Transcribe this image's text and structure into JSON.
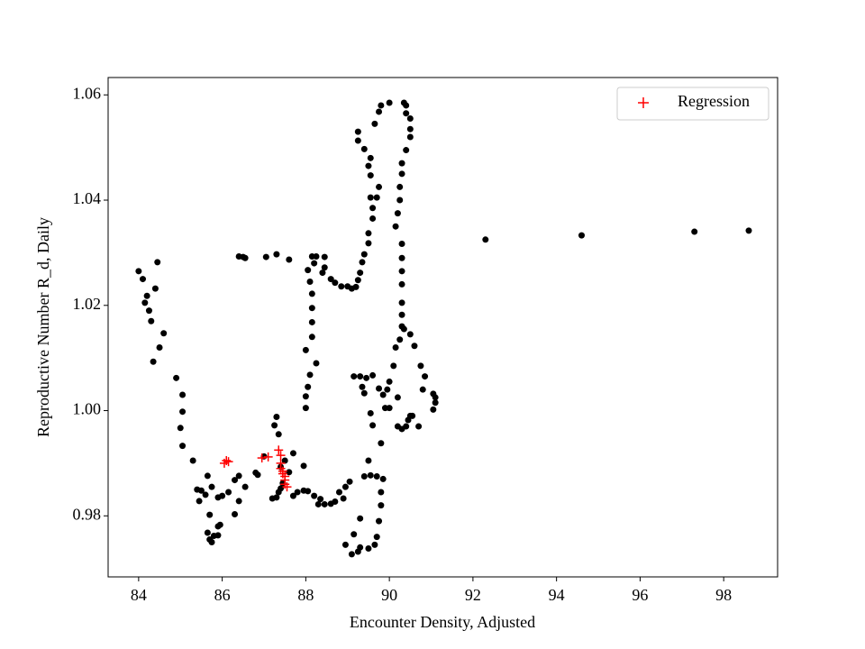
{
  "chart_data": {
    "type": "scatter",
    "xlabel": "Encounter Density, Adjusted",
    "ylabel": "Reproductive Number R_d, Daily",
    "xlim": [
      83.27,
      99.29
    ],
    "ylim": [
      0.9684,
      1.0633
    ],
    "xticks": [
      84,
      86,
      88,
      90,
      92,
      94,
      96,
      98
    ],
    "yticks": [
      0.98,
      {
        "value": 1,
        "label": "1.00"
      },
      1.02,
      1.04,
      1.06
    ],
    "legend": "upper right",
    "series": [
      {
        "color": "#000000",
        "marker": "dot",
        "x": [
          84.0,
          84.1,
          84.15,
          84.2,
          84.25,
          84.3,
          84.4,
          84.45,
          84.5,
          84.6,
          84.35,
          84.9,
          85.05,
          85.05,
          85.0,
          85.05,
          85.3,
          85.4,
          85.5,
          85.45,
          85.6,
          85.65,
          85.75,
          85.7,
          85.65,
          85.7,
          85.75,
          85.8,
          85.9,
          85.9,
          85.95,
          85.9,
          86.0,
          86.15,
          86.3,
          86.4,
          86.3,
          86.4,
          86.55,
          86.8,
          86.85,
          87.0,
          86.4,
          86.5,
          86.55,
          87.05,
          87.3,
          87.6,
          87.25,
          87.3,
          87.35,
          87.2,
          87.3,
          87.35,
          87.4,
          87.45,
          87.4,
          87.5,
          87.6,
          87.7,
          87.7,
          87.8,
          87.95,
          88.05,
          88.2,
          88.3,
          88.35,
          88.45,
          88.6,
          88.7,
          88.8,
          88.95,
          89.05,
          88.9,
          87.95,
          88.0,
          88.0,
          88.05,
          88.1,
          88.25,
          88.0,
          88.15,
          88.15,
          88.15,
          88.15,
          88.1,
          88.05,
          88.15,
          88.25,
          88.2,
          88.4,
          88.45,
          88.45,
          88.6,
          88.7,
          88.85,
          89.0,
          89.1,
          89.2,
          89.25,
          89.3,
          89.35,
          89.4,
          89.5,
          89.5,
          89.6,
          89.6,
          89.55,
          89.75,
          89.7,
          89.55,
          89.5,
          89.55,
          89.4,
          89.25,
          89.25,
          89.65,
          89.75,
          89.8,
          90.0,
          90.35,
          90.4,
          90.5,
          90.4,
          90.5,
          90.5,
          90.4,
          90.3,
          90.3,
          90.25,
          90.25,
          90.2,
          90.15,
          90.3,
          90.3,
          90.3,
          90.3,
          90.3,
          90.3,
          90.3,
          90.35,
          90.25,
          90.15,
          90.1,
          90.0,
          89.95,
          89.9,
          90.0,
          90.2,
          89.85,
          89.75,
          89.6,
          89.45,
          89.35,
          89.3,
          89.15,
          89.4,
          89.55,
          89.6,
          89.5,
          89.4,
          89.55,
          89.7,
          89.85,
          89.8,
          89.8,
          89.75,
          89.7,
          89.65,
          89.3,
          89.25,
          89.1,
          89.15,
          89.3,
          88.95,
          89.5,
          89.8,
          90.2,
          90.3,
          90.4,
          90.45,
          90.5,
          90.55,
          90.7,
          90.5,
          90.6,
          90.75,
          90.85,
          91.05,
          91.1,
          91.05,
          91.1,
          90.8,
          92.3,
          94.6,
          97.3,
          98.6
        ],
        "y": [
          1.0265,
          1.025,
          1.0205,
          1.0218,
          1.019,
          1.017,
          1.0232,
          1.0282,
          1.012,
          1.0147,
          1.0093,
          1.0062,
          1.003,
          0.9998,
          0.9967,
          0.9933,
          0.9905,
          0.985,
          0.9848,
          0.9828,
          0.984,
          0.9876,
          0.9855,
          0.9802,
          0.9768,
          0.9755,
          0.975,
          0.9762,
          0.9763,
          0.978,
          0.9783,
          0.9835,
          0.9838,
          0.9845,
          0.9803,
          0.9828,
          0.9868,
          0.9876,
          0.9855,
          0.9882,
          0.9878,
          0.9913,
          1.0293,
          1.0292,
          1.029,
          1.0292,
          1.0297,
          1.0287,
          0.9972,
          0.9988,
          0.9955,
          0.9833,
          0.9835,
          0.9845,
          0.9852,
          0.9862,
          0.9893,
          0.9905,
          0.9883,
          0.9919,
          0.9838,
          0.9845,
          0.9848,
          0.9847,
          0.9838,
          0.9822,
          0.9832,
          0.9822,
          0.9823,
          0.9827,
          0.9845,
          0.9855,
          0.9865,
          0.9833,
          0.9895,
          1.0005,
          1.0027,
          1.0045,
          1.0068,
          1.009,
          1.0115,
          1.014,
          1.0168,
          1.0195,
          1.0222,
          1.0245,
          1.0267,
          1.0293,
          1.0293,
          1.028,
          1.0262,
          1.0272,
          1.0292,
          1.025,
          1.0243,
          1.0236,
          1.0236,
          1.0232,
          1.0235,
          1.0248,
          1.0262,
          1.0282,
          1.0297,
          1.0318,
          1.0337,
          1.0365,
          1.0385,
          1.0405,
          1.0425,
          1.0405,
          1.0447,
          1.0465,
          1.048,
          1.0497,
          1.0513,
          1.053,
          1.0545,
          1.0568,
          1.058,
          1.0585,
          1.0585,
          1.058,
          1.0555,
          1.0565,
          1.0535,
          1.052,
          1.0495,
          1.047,
          1.045,
          1.0425,
          1.04,
          1.0375,
          1.035,
          1.0317,
          1.029,
          1.0265,
          1.024,
          1.0205,
          1.0182,
          1.016,
          1.0155,
          1.0135,
          1.012,
          1.0085,
          1.0055,
          1.004,
          1.0005,
          1.0005,
          1.0025,
          1.003,
          1.0042,
          1.0067,
          1.0062,
          1.0045,
          1.0065,
          1.0065,
          1.0033,
          0.9995,
          0.9972,
          0.9905,
          0.9875,
          0.9877,
          0.9875,
          0.987,
          0.9845,
          0.982,
          0.979,
          0.976,
          0.9745,
          0.974,
          0.9732,
          0.9727,
          0.9765,
          0.9795,
          0.9745,
          0.9738,
          0.9938,
          0.997,
          0.9965,
          0.997,
          0.9982,
          0.999,
          0.999,
          0.997,
          1.0145,
          1.0123,
          1.0085,
          1.0065,
          1.0032,
          1.0015,
          1.0002,
          1.0025,
          1.004,
          1.0325,
          1.0333,
          1.034,
          1.0342
        ]
      },
      {
        "name": "Regression",
        "color": "#ff0000",
        "marker": "plus",
        "x": [
          86.05,
          86.1,
          86.15,
          86.95,
          87.1,
          87.35,
          87.4,
          87.4,
          87.4,
          87.45,
          87.45,
          87.5,
          87.5,
          87.5,
          87.55
        ],
        "y": [
          0.99,
          0.9905,
          0.9903,
          0.991,
          0.9912,
          0.9925,
          0.9915,
          0.99,
          0.989,
          0.9885,
          0.988,
          0.9875,
          0.9868,
          0.986,
          0.9855
        ]
      }
    ]
  }
}
